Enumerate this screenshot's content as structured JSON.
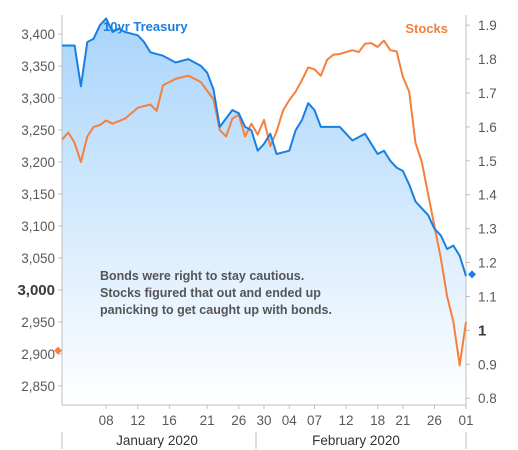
{
  "chart_data": {
    "type": "line",
    "title": "",
    "colors": {
      "treasury": "#1a7fe3",
      "stocks": "#f4803e",
      "fill_top": "#a9d4fb",
      "fill_bottom": "#ffffff"
    },
    "left_axis": {
      "ylim": [
        2820,
        3430
      ],
      "ticks": [
        "2,850",
        "2,900",
        "2,950",
        "3,000",
        "3,050",
        "3,100",
        "3,150",
        "3,200",
        "3,250",
        "3,300",
        "3,350",
        "3,400"
      ],
      "tick_values": [
        2850,
        2900,
        2950,
        3000,
        3050,
        3100,
        3150,
        3200,
        3250,
        3300,
        3350,
        3400
      ],
      "emphasized_tick": "3,000",
      "marker_value": 2905
    },
    "right_axis": {
      "ylim": [
        0.78,
        1.93
      ],
      "ticks": [
        "0.8",
        "0.9",
        "1",
        "1.1",
        "1.2",
        "1.3",
        "1.4",
        "1.5",
        "1.6",
        "1.7",
        "1.8",
        "1.9"
      ],
      "tick_values": [
        0.8,
        0.9,
        1.0,
        1.1,
        1.2,
        1.3,
        1.4,
        1.5,
        1.6,
        1.7,
        1.8,
        1.9
      ],
      "emphasized_tick": "1",
      "marker_value": 1.165
    },
    "x_axis": {
      "ticks": [
        "08",
        "12",
        "16",
        "21",
        "26",
        "30",
        "04",
        "07",
        "12",
        "18",
        "21",
        "26",
        "01"
      ],
      "tick_positions": [
        7,
        12,
        17,
        23,
        28,
        32,
        36,
        40,
        45,
        50,
        54,
        59,
        64
      ],
      "months": [
        "January 2020",
        "February 2020"
      ]
    },
    "series": [
      {
        "name": "10yr Treasury",
        "axis": "right",
        "color": "#1a7fe3",
        "x": [
          0,
          2,
          3,
          4,
          5,
          6,
          7,
          8,
          9,
          10,
          12,
          13,
          14,
          16,
          18,
          20,
          22,
          23,
          24,
          25,
          27,
          28,
          29,
          30,
          31,
          32,
          33,
          34,
          36,
          37,
          38,
          39,
          40,
          41,
          42,
          44,
          46,
          48,
          50,
          51,
          52,
          53,
          54,
          55,
          56,
          57,
          58,
          59,
          60,
          61,
          62,
          63,
          64
        ],
        "y": [
          1.84,
          1.84,
          1.72,
          1.85,
          1.86,
          1.9,
          1.92,
          1.88,
          1.89,
          1.88,
          1.87,
          1.85,
          1.82,
          1.81,
          1.79,
          1.8,
          1.78,
          1.76,
          1.71,
          1.6,
          1.65,
          1.64,
          1.6,
          1.59,
          1.53,
          1.55,
          1.58,
          1.52,
          1.53,
          1.59,
          1.62,
          1.67,
          1.65,
          1.6,
          1.6,
          1.6,
          1.56,
          1.58,
          1.52,
          1.53,
          1.5,
          1.48,
          1.47,
          1.43,
          1.38,
          1.36,
          1.34,
          1.3,
          1.28,
          1.24,
          1.25,
          1.22,
          1.16
        ]
      },
      {
        "name": "Stocks",
        "axis": "left",
        "color": "#f4803e",
        "x": [
          0,
          1,
          2,
          3,
          4,
          5,
          6,
          7,
          8,
          10,
          12,
          14,
          15,
          16,
          18,
          20,
          22,
          24,
          25,
          26,
          27,
          28,
          29,
          30,
          31,
          32,
          33,
          34,
          35,
          36,
          37,
          38,
          39,
          40,
          41,
          42,
          43,
          44,
          46,
          47,
          48,
          49,
          50,
          51,
          52,
          53,
          54,
          55,
          56,
          57,
          58,
          59,
          60,
          61,
          62,
          63,
          64
        ],
        "y": [
          3235,
          3246,
          3230,
          3200,
          3240,
          3255,
          3258,
          3265,
          3260,
          3268,
          3285,
          3290,
          3280,
          3320,
          3330,
          3335,
          3325,
          3298,
          3250,
          3240,
          3268,
          3274,
          3240,
          3260,
          3243,
          3266,
          3225,
          3248,
          3280,
          3297,
          3310,
          3328,
          3348,
          3345,
          3335,
          3360,
          3368,
          3369,
          3375,
          3372,
          3385,
          3386,
          3380,
          3390,
          3375,
          3373,
          3333,
          3310,
          3230,
          3200,
          3150,
          3100,
          3050,
          2990,
          2950,
          2882,
          2950
        ]
      }
    ],
    "annotation": [
      "Bonds were right to stay cautious.",
      "Stocks figured that out and ended up",
      "panicking to get caught up with bonds."
    ]
  }
}
